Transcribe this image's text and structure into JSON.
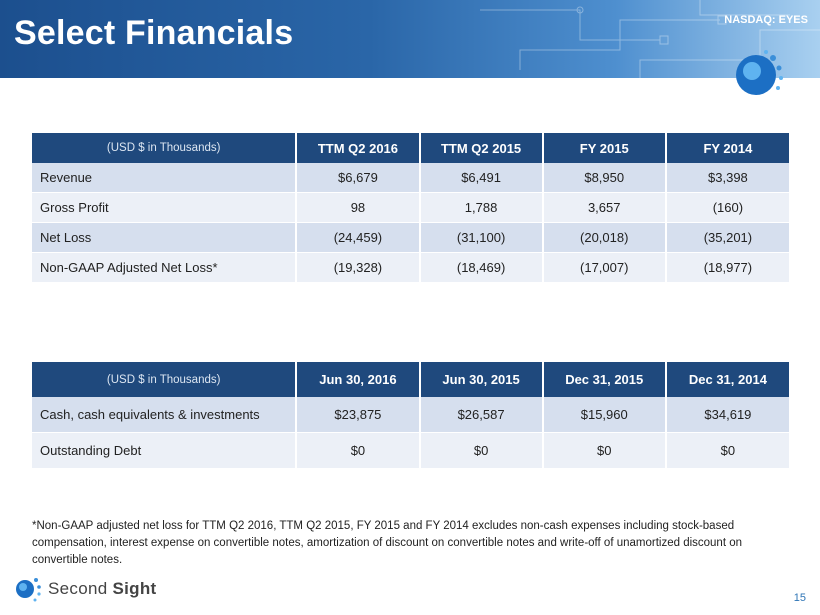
{
  "header": {
    "title": "Select Financials",
    "ticker": "NASDAQ: EYES"
  },
  "table1": {
    "headers": [
      "(USD $ in Thousands)",
      "TTM Q2 2016",
      "TTM Q2 2015",
      "FY 2015",
      "FY 2014"
    ],
    "rows": [
      {
        "label": "Revenue",
        "values": [
          "$6,679",
          "$6,491",
          "$8,950",
          "$3,398"
        ]
      },
      {
        "label": "Gross Profit",
        "values": [
          "98",
          "1,788",
          "3,657",
          "(160)"
        ]
      },
      {
        "label": "Net Loss",
        "values": [
          "(24,459)",
          "(31,100)",
          "(20,018)",
          "(35,201)"
        ]
      },
      {
        "label": "Non-GAAP Adjusted Net Loss*",
        "values": [
          "(19,328)",
          "(18,469)",
          "(17,007)",
          "(18,977)"
        ]
      }
    ]
  },
  "table2": {
    "headers": [
      "(USD $ in Thousands)",
      "Jun 30, 2016",
      "Jun 30, 2015",
      "Dec 31, 2015",
      "Dec 31, 2014"
    ],
    "rows": [
      {
        "label": "Cash, cash equivalents & investments",
        "values": [
          "$23,875",
          "$26,587",
          "$15,960",
          "$34,619"
        ]
      },
      {
        "label": "Outstanding Debt",
        "values": [
          "$0",
          "$0",
          "$0",
          "$0"
        ]
      }
    ]
  },
  "footnote": "*Non-GAAP adjusted net loss for TTM Q2 2016, TTM Q2 2015, FY 2015 and FY 2014 excludes non-cash expenses including stock-based compensation, interest expense on convertible notes, amortization of discount on convertible notes and write-off of unamortized discount on convertible notes.",
  "footer": {
    "brand_light": "Second ",
    "brand_bold": "Sight",
    "page_number": "15"
  },
  "colors": {
    "header_blue": "#1f497d",
    "row_odd": "#d6dfee",
    "row_even": "#ecf0f7",
    "accent": "#2e75b6"
  }
}
